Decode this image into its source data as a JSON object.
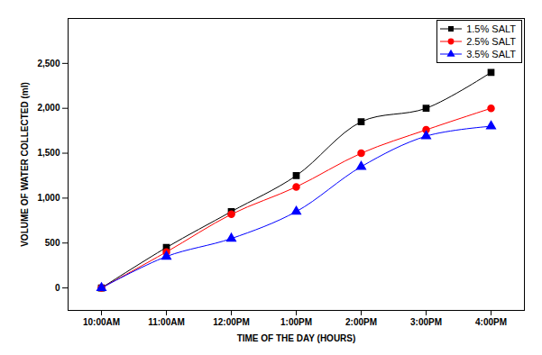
{
  "chart_data": {
    "type": "line",
    "x_label": "TIME OF THE DAY (HOURS)",
    "y_label": "VOLUME OF WATER COLLECTED (ml)",
    "categories": [
      "10:00AM",
      "11:00AM",
      "12:00PM",
      "1:00PM",
      "2:00PM",
      "3:00PM",
      "4:00PM"
    ],
    "series": [
      {
        "name": "1.5% SALT",
        "color": "#000000",
        "marker": "square",
        "values": [
          0,
          450,
          850,
          1250,
          1850,
          2000,
          2400
        ]
      },
      {
        "name": "2.5% SALT",
        "color": "#ff0000",
        "marker": "circle",
        "values": [
          0,
          400,
          820,
          1125,
          1500,
          1760,
          2000
        ]
      },
      {
        "name": "3.5% SALT",
        "color": "#0000ff",
        "marker": "triangle",
        "values": [
          0,
          350,
          550,
          850,
          1350,
          1690,
          1800
        ]
      }
    ],
    "ylim": [
      -250,
      3000
    ],
    "yticks": [
      0,
      500,
      1000,
      1500,
      2000,
      2500
    ],
    "grid": false,
    "legend": "top-right"
  }
}
